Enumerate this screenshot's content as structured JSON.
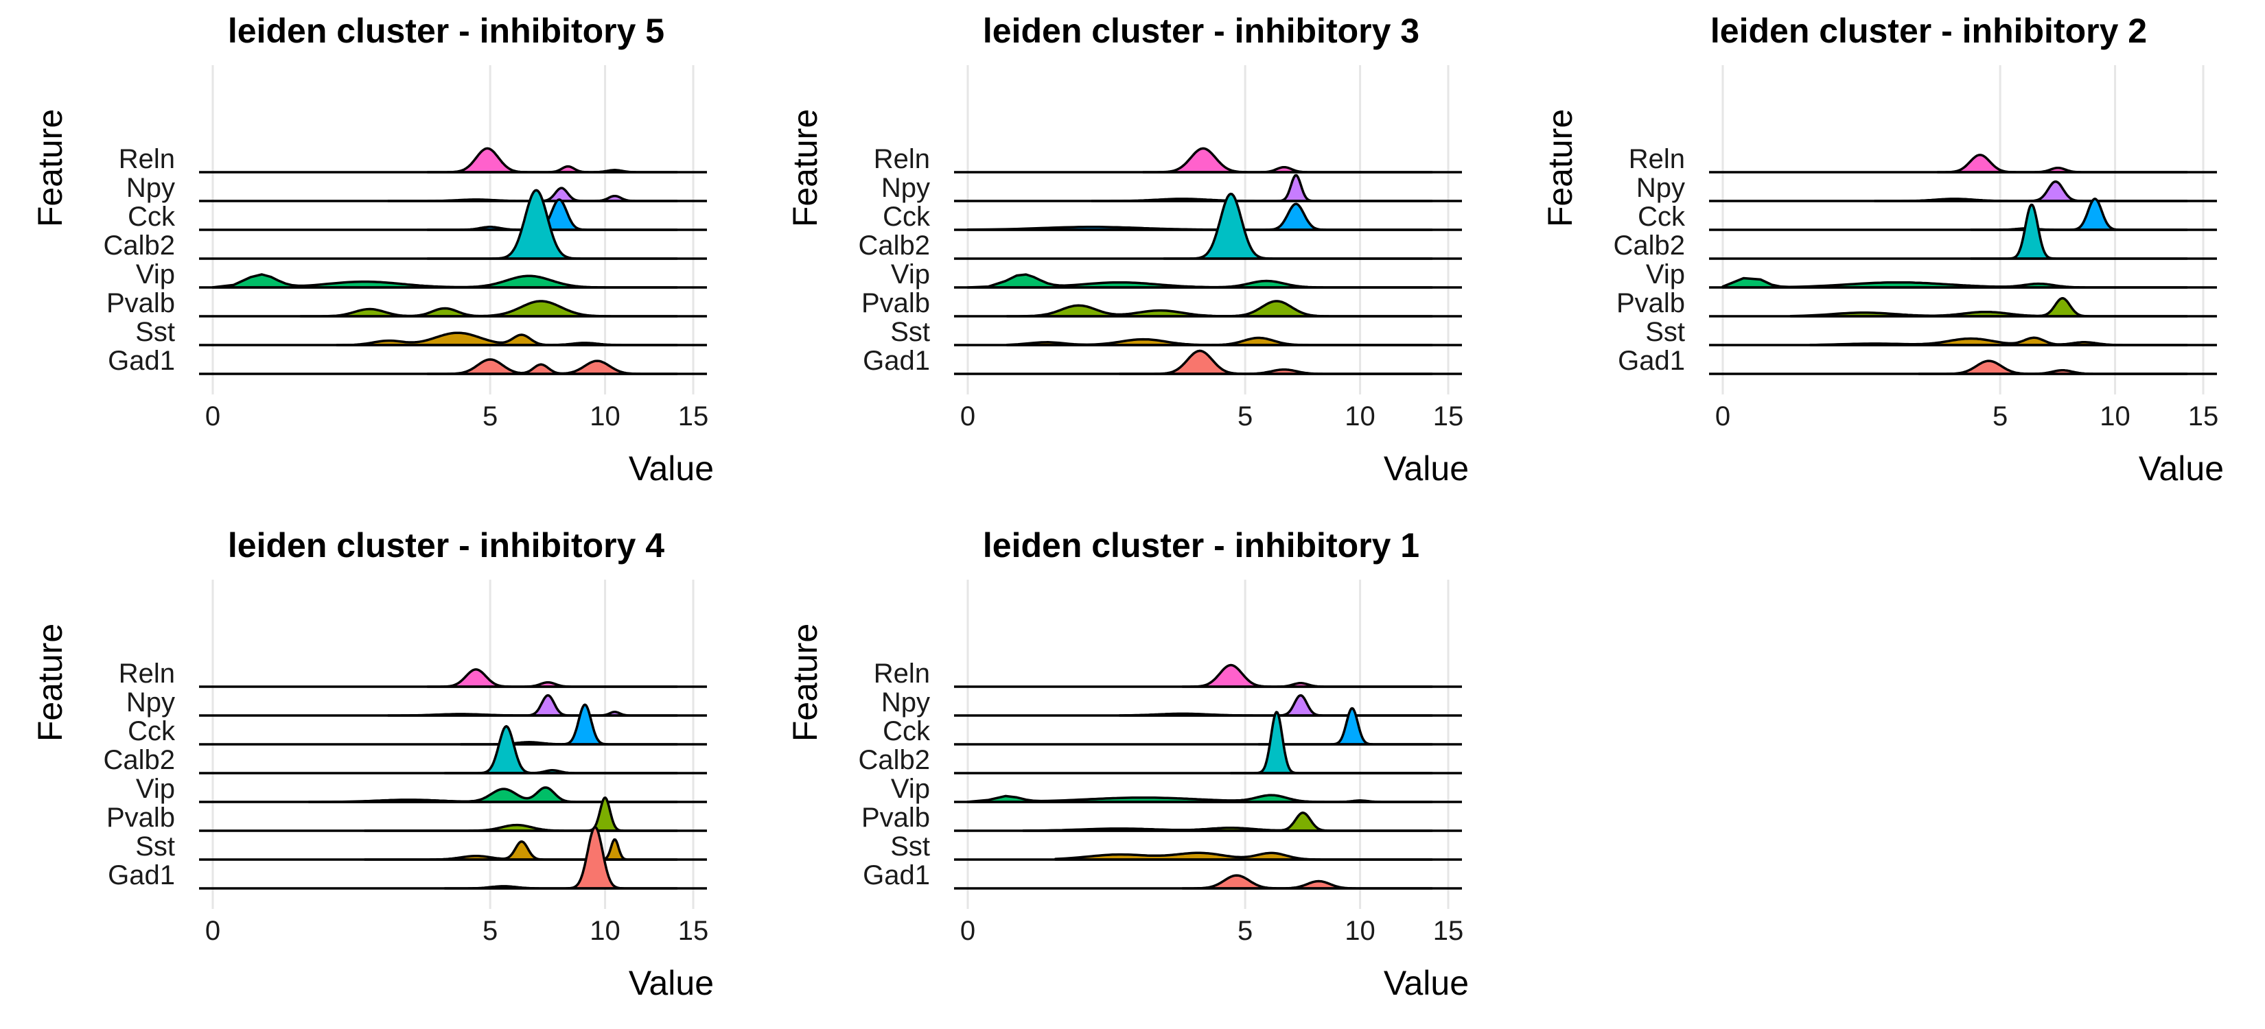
{
  "figure": {
    "title": ""
  },
  "feature_colors": {
    "Gad1": "#F8766D",
    "Sst": "#CD9600",
    "Pvalb": "#7CAE00",
    "Vip": "#00BE67",
    "Calb2": "#00BFC4",
    "Cck": "#00A9FF",
    "Npy": "#C77CFF",
    "Reln": "#FF61CC"
  },
  "chart_data": [
    {
      "type": "ridgeline",
      "title": "leiden cluster - inhibitory 5",
      "xlabel": "Value",
      "ylabel": "Feature",
      "x_ticks": [
        0,
        5,
        10,
        15
      ],
      "x_scale": "sqrt",
      "xlim": [
        -0.2,
        15
      ],
      "grid": true,
      "features": [
        "Gad1",
        "Sst",
        "Pvalb",
        "Vip",
        "Calb2",
        "Cck",
        "Npy",
        "Reln"
      ],
      "series": [
        {
          "name": "Gad1",
          "range": [
            3.0,
            14
          ],
          "peaks": [
            [
              5.0,
              2.0,
              0.1
            ],
            [
              7.0,
              1.3,
              0.06
            ],
            [
              9.6,
              1.8,
              0.1
            ]
          ]
        },
        {
          "name": "Sst",
          "range": [
            1.0,
            14
          ],
          "peaks": [
            [
              2.0,
              0.6,
              0.12
            ],
            [
              3.9,
              1.7,
              0.18
            ],
            [
              6.2,
              1.4,
              0.07
            ],
            [
              9.0,
              0.3,
              0.1
            ]
          ]
        },
        {
          "name": "Pvalb",
          "range": [
            0.5,
            14
          ],
          "peaks": [
            [
              1.6,
              1.0,
              0.12
            ],
            [
              3.5,
              1.1,
              0.1
            ],
            [
              7.0,
              2.1,
              0.16
            ]
          ]
        },
        {
          "name": "Vip",
          "range": [
            -0.1,
            14
          ],
          "peaks": [
            [
              0.15,
              1.8,
              0.12
            ],
            [
              1.5,
              0.8,
              0.3
            ],
            [
              6.5,
              1.6,
              0.18
            ]
          ]
        },
        {
          "name": "Calb2",
          "range": [
            3.0,
            14
          ],
          "peaks": [
            [
              6.8,
              9.5,
              0.09
            ]
          ]
        },
        {
          "name": "Cck",
          "range": [
            3.0,
            14
          ],
          "peaks": [
            [
              5.0,
              0.4,
              0.08
            ],
            [
              7.8,
              4.2,
              0.06
            ]
          ]
        },
        {
          "name": "Npy",
          "range": [
            2.0,
            14
          ],
          "peaks": [
            [
              4.5,
              0.2,
              0.14
            ],
            [
              7.9,
              1.8,
              0.05
            ],
            [
              10.5,
              0.7,
              0.05
            ]
          ]
        },
        {
          "name": "Reln",
          "range": [
            3.0,
            14
          ],
          "peaks": [
            [
              4.9,
              3.3,
              0.09
            ],
            [
              8.2,
              0.8,
              0.05
            ],
            [
              10.5,
              0.3,
              0.06
            ]
          ]
        }
      ]
    },
    {
      "type": "ridgeline",
      "title": "leiden cluster - inhibitory 3",
      "xlabel": "Value",
      "ylabel": "Feature",
      "x_ticks": [
        0,
        5,
        10,
        15
      ],
      "x_scale": "sqrt",
      "xlim": [
        -0.2,
        15
      ],
      "grid": true,
      "features": [
        "Gad1",
        "Sst",
        "Pvalb",
        "Vip",
        "Calb2",
        "Cck",
        "Npy",
        "Reln"
      ],
      "series": [
        {
          "name": "Gad1",
          "range": [
            1.5,
            14
          ],
          "peaks": [
            [
              3.5,
              3.2,
              0.1
            ],
            [
              6.5,
              0.6,
              0.1
            ]
          ]
        },
        {
          "name": "Sst",
          "range": [
            0.1,
            14
          ],
          "peaks": [
            [
              0.4,
              0.4,
              0.14
            ],
            [
              2.0,
              0.8,
              0.18
            ],
            [
              5.5,
              1.0,
              0.12
            ]
          ]
        },
        {
          "name": "Pvalb",
          "range": [
            0.1,
            14
          ],
          "peaks": [
            [
              0.8,
              1.5,
              0.14
            ],
            [
              2.4,
              0.8,
              0.18
            ],
            [
              6.2,
              2.1,
              0.12
            ]
          ]
        },
        {
          "name": "Vip",
          "range": [
            -0.1,
            14
          ],
          "peaks": [
            [
              0.2,
              1.8,
              0.12
            ],
            [
              1.5,
              0.7,
              0.3
            ],
            [
              5.8,
              0.9,
              0.14
            ]
          ]
        },
        {
          "name": "Calb2",
          "range": [
            2.5,
            14
          ],
          "peaks": [
            [
              4.5,
              9.0,
              0.085
            ]
          ]
        },
        {
          "name": "Cck",
          "range": [
            -0.1,
            14
          ],
          "peaks": [
            [
              1.0,
              0.4,
              0.4
            ],
            [
              7.0,
              3.6,
              0.065
            ]
          ]
        },
        {
          "name": "Npy",
          "range": [
            1.0,
            14
          ],
          "peaks": [
            [
              3.0,
              0.3,
              0.2
            ],
            [
              7.0,
              3.6,
              0.04
            ]
          ]
        },
        {
          "name": "Reln",
          "range": [
            2.0,
            14
          ],
          "peaks": [
            [
              3.6,
              3.3,
              0.1
            ],
            [
              6.5,
              0.7,
              0.06
            ]
          ]
        }
      ]
    },
    {
      "type": "ridgeline",
      "title": "leiden cluster - inhibitory 2",
      "xlabel": "Value",
      "ylabel": "Feature",
      "x_ticks": [
        0,
        5,
        10,
        15
      ],
      "x_scale": "sqrt",
      "xlim": [
        -0.2,
        15
      ],
      "grid": true,
      "features": [
        "Gad1",
        "Sst",
        "Pvalb",
        "Vip",
        "Calb2",
        "Cck",
        "Npy",
        "Reln"
      ],
      "series": [
        {
          "name": "Gad1",
          "range": [
            2.5,
            14
          ],
          "peaks": [
            [
              4.6,
              1.8,
              0.1
            ],
            [
              7.5,
              0.5,
              0.08
            ]
          ]
        },
        {
          "name": "Sst",
          "range": [
            0.5,
            14
          ],
          "peaks": [
            [
              1.5,
              0.2,
              0.25
            ],
            [
              4.0,
              0.9,
              0.18
            ],
            [
              6.3,
              1.0,
              0.08
            ],
            [
              8.5,
              0.4,
              0.1
            ]
          ]
        },
        {
          "name": "Pvalb",
          "range": [
            0.3,
            14
          ],
          "peaks": [
            [
              1.3,
              0.5,
              0.25
            ],
            [
              4.5,
              0.6,
              0.18
            ],
            [
              7.5,
              2.5,
              0.06
            ]
          ]
        },
        {
          "name": "Vip",
          "range": [
            -0.1,
            14
          ],
          "peaks": [
            [
              0.05,
              1.5,
              0.1
            ],
            [
              2.0,
              0.7,
              0.4
            ],
            [
              6.5,
              0.5,
              0.12
            ]
          ]
        },
        {
          "name": "Calb2",
          "range": [
            4.0,
            14
          ],
          "peaks": [
            [
              6.2,
              7.5,
              0.05
            ]
          ]
        },
        {
          "name": "Cck",
          "range": [
            4.0,
            14
          ],
          "peaks": [
            [
              6.0,
              0.2,
              0.08
            ],
            [
              9.0,
              4.3,
              0.055
            ]
          ]
        },
        {
          "name": "Npy",
          "range": [
            1.5,
            14
          ],
          "peaks": [
            [
              3.5,
              0.3,
              0.15
            ],
            [
              7.2,
              2.7,
              0.06
            ]
          ]
        },
        {
          "name": "Reln",
          "range": [
            3.0,
            14
          ],
          "peaks": [
            [
              4.3,
              2.4,
              0.08
            ],
            [
              7.3,
              0.6,
              0.06
            ]
          ]
        }
      ]
    },
    {
      "type": "ridgeline",
      "title": "leiden cluster - inhibitory 4",
      "xlabel": "Value",
      "ylabel": "Feature",
      "x_ticks": [
        0,
        5,
        10,
        15
      ],
      "x_scale": "sqrt",
      "xlim": [
        -0.2,
        15
      ],
      "grid": true,
      "features": [
        "Gad1",
        "Sst",
        "Pvalb",
        "Vip",
        "Calb2",
        "Cck",
        "Npy",
        "Reln"
      ],
      "series": [
        {
          "name": "Gad1",
          "range": [
            3.5,
            14
          ],
          "peaks": [
            [
              9.5,
              8.5,
              0.06
            ],
            [
              5.5,
              0.3,
              0.1
            ]
          ]
        },
        {
          "name": "Sst",
          "range": [
            1.5,
            14
          ],
          "peaks": [
            [
              4.5,
              0.5,
              0.12
            ],
            [
              6.2,
              2.5,
              0.05
            ],
            [
              10.5,
              2.8,
              0.03
            ]
          ]
        },
        {
          "name": "Pvalb",
          "range": [
            1.5,
            14
          ],
          "peaks": [
            [
              6.0,
              0.8,
              0.12
            ],
            [
              10.0,
              4.6,
              0.04
            ]
          ]
        },
        {
          "name": "Vip",
          "range": [
            0.6,
            14
          ],
          "peaks": [
            [
              2.5,
              0.3,
              0.25
            ],
            [
              5.5,
              1.8,
              0.1
            ],
            [
              7.2,
              2.0,
              0.07
            ]
          ]
        },
        {
          "name": "Calb2",
          "range": [
            3.5,
            14
          ],
          "peaks": [
            [
              5.6,
              6.5,
              0.06
            ],
            [
              7.5,
              0.4,
              0.06
            ]
          ]
        },
        {
          "name": "Cck",
          "range": [
            4.0,
            14
          ],
          "peaks": [
            [
              6.5,
              0.3,
              0.1
            ],
            [
              9.0,
              5.5,
              0.05
            ]
          ]
        },
        {
          "name": "Npy",
          "range": [
            2.0,
            14
          ],
          "peaks": [
            [
              4.0,
              0.2,
              0.18
            ],
            [
              7.3,
              2.8,
              0.05
            ],
            [
              10.5,
              0.5,
              0.04
            ]
          ]
        },
        {
          "name": "Reln",
          "range": [
            3.0,
            14
          ],
          "peaks": [
            [
              4.5,
              2.4,
              0.08
            ],
            [
              7.3,
              0.6,
              0.06
            ]
          ]
        }
      ]
    },
    {
      "type": "ridgeline",
      "title": "leiden cluster - inhibitory 1",
      "xlabel": "Value",
      "ylabel": "Feature",
      "x_ticks": [
        0,
        5,
        10,
        15
      ],
      "x_scale": "sqrt",
      "xlim": [
        -0.2,
        15
      ],
      "grid": true,
      "features": [
        "Gad1",
        "Sst",
        "Pvalb",
        "Vip",
        "Calb2",
        "Cck",
        "Npy",
        "Reln"
      ],
      "series": [
        {
          "name": "Gad1",
          "range": [
            3.0,
            14
          ],
          "peaks": [
            [
              4.7,
              1.8,
              0.1
            ],
            [
              8.0,
              1.0,
              0.09
            ]
          ]
        },
        {
          "name": "Sst",
          "range": [
            0.5,
            14
          ],
          "peaks": [
            [
              1.5,
              0.7,
              0.25
            ],
            [
              3.5,
              0.9,
              0.2
            ],
            [
              6.0,
              0.9,
              0.12
            ]
          ]
        },
        {
          "name": "Pvalb",
          "range": [
            0.2,
            14
          ],
          "peaks": [
            [
              1.5,
              0.3,
              0.3
            ],
            [
              4.5,
              0.4,
              0.18
            ],
            [
              7.3,
              2.5,
              0.06
            ]
          ]
        },
        {
          "name": "Vip",
          "range": [
            -0.1,
            14
          ],
          "peaks": [
            [
              0.1,
              0.8,
              0.1
            ],
            [
              2.0,
              0.6,
              0.45
            ],
            [
              6.0,
              0.9,
              0.12
            ],
            [
              10.0,
              0.2,
              0.06
            ]
          ]
        },
        {
          "name": "Calb2",
          "range": [
            4.5,
            14
          ],
          "peaks": [
            [
              6.2,
              8.5,
              0.045
            ]
          ]
        },
        {
          "name": "Cck",
          "range": [
            5.5,
            14
          ],
          "peaks": [
            [
              9.6,
              5.0,
              0.045
            ]
          ]
        },
        {
          "name": "Npy",
          "range": [
            1.5,
            14
          ],
          "peaks": [
            [
              3.0,
              0.25,
              0.2
            ],
            [
              7.2,
              2.8,
              0.05
            ]
          ]
        },
        {
          "name": "Reln",
          "range": [
            3.0,
            14
          ],
          "peaks": [
            [
              4.5,
              3.0,
              0.09
            ],
            [
              7.2,
              0.5,
              0.06
            ]
          ]
        }
      ]
    }
  ]
}
